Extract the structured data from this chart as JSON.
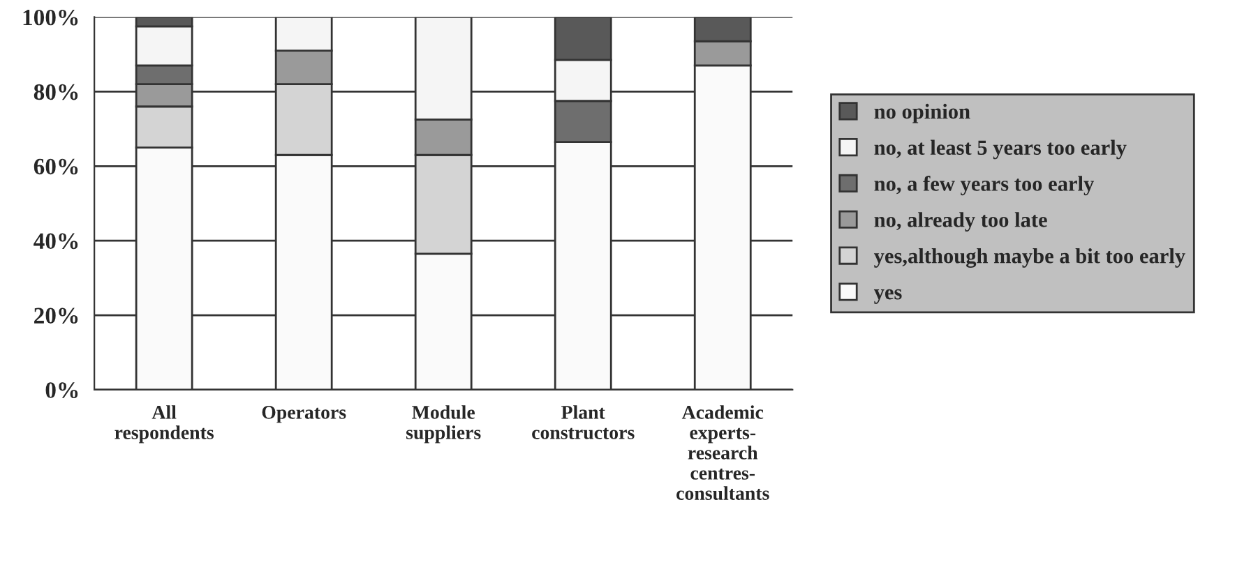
{
  "chart_data": {
    "type": "bar",
    "stacked": true,
    "categories": [
      "All\nrespondents",
      "Operators",
      "Module\nsuppliers",
      "Plant\nconstructors",
      "Academic\nexperts-\nresearch\ncentres-\nconsultants"
    ],
    "series": [
      {
        "name": "yes",
        "color": "#fafafa",
        "values": [
          65,
          63,
          36.5,
          66.5,
          87
        ]
      },
      {
        "name": "yes,although maybe a bit too early",
        "color": "#d4d4d4",
        "values": [
          11,
          19,
          26.5,
          null,
          null
        ]
      },
      {
        "name": "no, already too late",
        "color": "#9a9a9a",
        "values": [
          6,
          9,
          9.5,
          null,
          6.5
        ]
      },
      {
        "name": "no, a few years too early",
        "color": "#6e6e6e",
        "values": [
          5,
          null,
          null,
          11,
          null
        ]
      },
      {
        "name": "no, at least 5 years too early",
        "color": "#f5f5f5",
        "values": [
          10.5,
          9,
          27.5,
          11,
          null
        ]
      },
      {
        "name": "no opinion",
        "color": "#595959",
        "values": [
          2.5,
          null,
          null,
          11.5,
          6.5
        ]
      }
    ],
    "ylim": [
      0,
      100
    ],
    "yticks": [
      {
        "value": 0,
        "label": "0%"
      },
      {
        "value": 20,
        "label": "20%"
      },
      {
        "value": 40,
        "label": "40%"
      },
      {
        "value": 60,
        "label": "60%"
      },
      {
        "value": 80,
        "label": "80%"
      },
      {
        "value": 100,
        "label": "100%"
      }
    ],
    "grid": "y",
    "legend": "right"
  }
}
